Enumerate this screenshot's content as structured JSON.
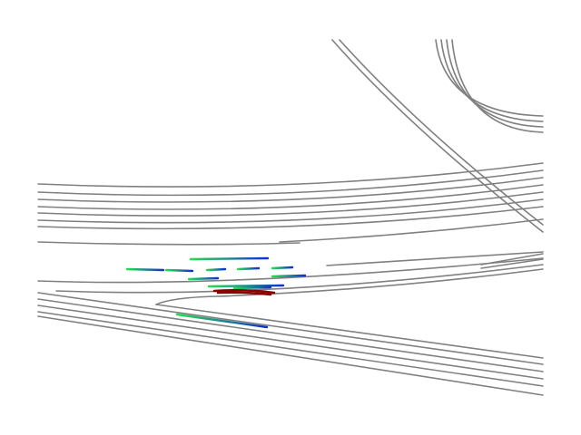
{
  "colors": {
    "background": "#ffffff",
    "lane": "#808080",
    "trajectory_start": "#22e04a",
    "trajectory_end": "#1030d0",
    "ego": "#8b0000"
  },
  "lane_count": 30,
  "agent_trajectory_count": 14,
  "ego_trajectory_count": 1
}
